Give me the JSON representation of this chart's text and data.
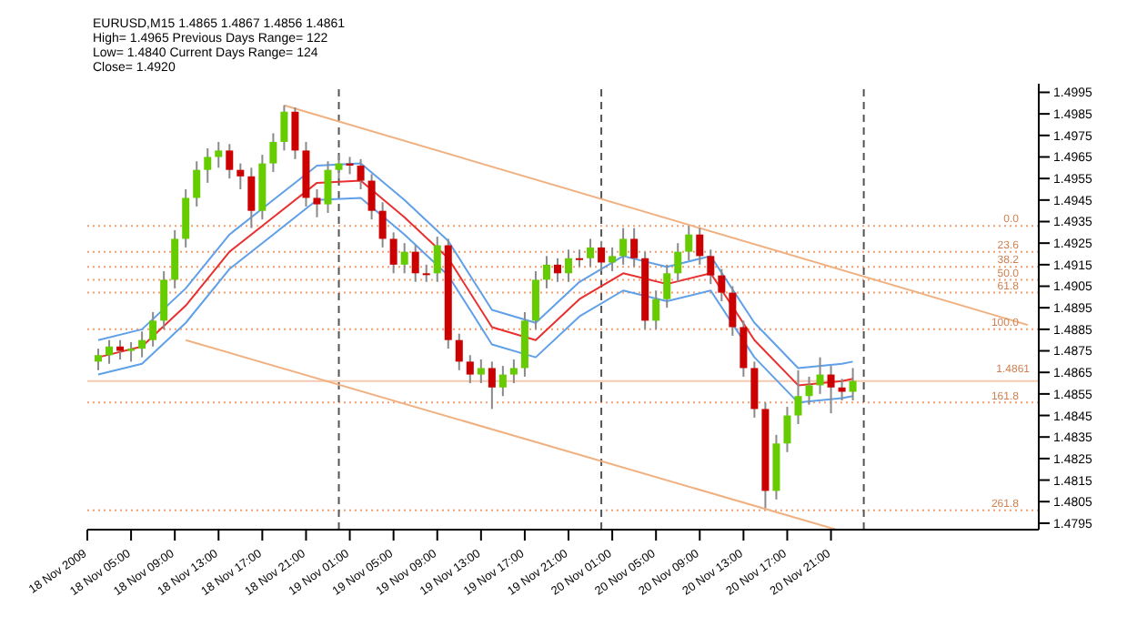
{
  "chart_data": {
    "type": "candlestick",
    "title": "EURUSD,M15 1.4865 1.4867 1.4856 1.4861",
    "annotations": [
      "High= 1.4965  Previous Days Range= 122",
      "Low= 1.4840  Current Days Range= 124",
      "Close= 1.4920",
      {
        "text": "0.0",
        "x": "2009-11-21T15:00",
        "y": 1.4933
      },
      {
        "text": "23.6",
        "x": "2009-11-21T15:00",
        "y": 1.4921
      },
      {
        "text": "38.2",
        "x": "2009-11-21T15:00",
        "y": 1.4914
      },
      {
        "text": "50.0",
        "x": "2009-11-21T15:00",
        "y": 1.4908
      },
      {
        "text": "61.8",
        "x": "2009-11-21T15:00",
        "y": 1.4902
      },
      {
        "text": "100.0",
        "x": "2009-11-21T15:00",
        "y": 1.4885
      },
      {
        "text": "161.8",
        "x": "2009-11-21T15:00",
        "y": 1.4851
      },
      {
        "text": "261.8",
        "x": "2009-11-21T15:00",
        "y": 1.4801
      }
    ],
    "x": [
      "2009-11-18T02:00",
      "2009-11-18T03:00",
      "2009-11-18T04:00",
      "2009-11-18T05:00",
      "2009-11-18T06:00",
      "2009-11-18T07:00",
      "2009-11-18T08:00",
      "2009-11-18T09:00",
      "2009-11-18T10:00",
      "2009-11-18T11:00",
      "2009-11-18T12:00",
      "2009-11-18T13:00",
      "2009-11-18T14:00",
      "2009-11-18T15:00",
      "2009-11-18T16:00",
      "2009-11-18T17:00",
      "2009-11-18T18:00",
      "2009-11-18T19:00",
      "2009-11-18T20:00",
      "2009-11-18T21:00",
      "2009-11-18T22:00",
      "2009-11-18T23:00",
      "2009-11-19T00:00",
      "2009-11-19T01:00",
      "2009-11-19T02:00",
      "2009-11-19T03:00",
      "2009-11-19T04:00",
      "2009-11-19T05:00",
      "2009-11-19T06:00",
      "2009-11-19T07:00",
      "2009-11-19T08:00",
      "2009-11-19T09:00",
      "2009-11-19T10:00",
      "2009-11-19T11:00",
      "2009-11-19T12:00",
      "2009-11-19T13:00",
      "2009-11-19T14:00",
      "2009-11-19T15:00",
      "2009-11-19T16:00",
      "2009-11-19T17:00",
      "2009-11-19T18:00",
      "2009-11-19T19:00",
      "2009-11-19T20:00",
      "2009-11-19T21:00",
      "2009-11-19T22:00",
      "2009-11-19T23:00",
      "2009-11-20T00:00",
      "2009-11-20T01:00",
      "2009-11-20T02:00",
      "2009-11-20T03:00",
      "2009-11-20T04:00",
      "2009-11-20T05:00",
      "2009-11-20T06:00",
      "2009-11-20T07:00",
      "2009-11-20T08:00",
      "2009-11-20T09:00",
      "2009-11-20T10:00",
      "2009-11-20T11:00",
      "2009-11-20T12:00",
      "2009-11-20T13:00",
      "2009-11-20T14:00",
      "2009-11-20T15:00",
      "2009-11-20T16:00",
      "2009-11-20T17:00",
      "2009-11-20T18:00",
      "2009-11-20T19:00",
      "2009-11-20T20:00",
      "2009-11-20T21:00",
      "2009-11-20T22:00",
      "2009-11-20T23:00"
    ],
    "ohlc": [
      [
        1.487,
        1.4876,
        1.4866,
        1.4873
      ],
      [
        1.4873,
        1.488,
        1.4869,
        1.4877
      ],
      [
        1.4877,
        1.488,
        1.4871,
        1.4875
      ],
      [
        1.4875,
        1.4879,
        1.487,
        1.4876
      ],
      [
        1.4876,
        1.4884,
        1.4872,
        1.488
      ],
      [
        1.488,
        1.4893,
        1.4877,
        1.4889
      ],
      [
        1.4889,
        1.4912,
        1.4885,
        1.4908
      ],
      [
        1.4908,
        1.4931,
        1.4904,
        1.4927
      ],
      [
        1.4927,
        1.495,
        1.4923,
        1.4946
      ],
      [
        1.4946,
        1.4963,
        1.4942,
        1.4959
      ],
      [
        1.4959,
        1.4969,
        1.4953,
        1.4965
      ],
      [
        1.4965,
        1.4972,
        1.496,
        1.4968
      ],
      [
        1.4968,
        1.4971,
        1.4955,
        1.4959
      ],
      [
        1.4959,
        1.4962,
        1.495,
        1.4956
      ],
      [
        1.4956,
        1.496,
        1.4932,
        1.494
      ],
      [
        1.494,
        1.4966,
        1.4936,
        1.4962
      ],
      [
        1.4962,
        1.4976,
        1.4958,
        1.4972
      ],
      [
        1.4972,
        1.4989,
        1.4968,
        1.4986
      ],
      [
        1.4986,
        1.4988,
        1.4964,
        1.4968
      ],
      [
        1.4968,
        1.4972,
        1.4942,
        1.4946
      ],
      [
        1.4946,
        1.495,
        1.4937,
        1.4943
      ],
      [
        1.4943,
        1.4963,
        1.4939,
        1.4959
      ],
      [
        1.4959,
        1.4966,
        1.4955,
        1.4962
      ],
      [
        1.4962,
        1.4965,
        1.4957,
        1.4961
      ],
      [
        1.4961,
        1.4964,
        1.495,
        1.4954
      ],
      [
        1.4954,
        1.4957,
        1.4936,
        1.494
      ],
      [
        1.494,
        1.4944,
        1.4923,
        1.4927
      ],
      [
        1.4927,
        1.493,
        1.4911,
        1.4915
      ],
      [
        1.4915,
        1.4925,
        1.4911,
        1.4921
      ],
      [
        1.4921,
        1.4924,
        1.4907,
        1.4911
      ],
      [
        1.4911,
        1.4915,
        1.4907,
        1.4911
      ],
      [
        1.4911,
        1.4928,
        1.4907,
        1.4924
      ],
      [
        1.4924,
        1.4927,
        1.4876,
        1.488
      ],
      [
        1.488,
        1.4883,
        1.4866,
        1.487
      ],
      [
        1.487,
        1.4873,
        1.486,
        1.4864
      ],
      [
        1.4864,
        1.4871,
        1.486,
        1.4867
      ],
      [
        1.4867,
        1.487,
        1.4848,
        1.4858
      ],
      [
        1.4858,
        1.4868,
        1.4854,
        1.4864
      ],
      [
        1.4864,
        1.4871,
        1.486,
        1.4867
      ],
      [
        1.4867,
        1.4893,
        1.4863,
        1.4889
      ],
      [
        1.4889,
        1.4912,
        1.4885,
        1.4908
      ],
      [
        1.4908,
        1.4919,
        1.4904,
        1.4915
      ],
      [
        1.4915,
        1.4918,
        1.4907,
        1.4911
      ],
      [
        1.4911,
        1.4922,
        1.4907,
        1.4918
      ],
      [
        1.4918,
        1.4922,
        1.4914,
        1.4918
      ],
      [
        1.4918,
        1.4927,
        1.4914,
        1.4923
      ],
      [
        1.4923,
        1.4926,
        1.4912,
        1.4916
      ],
      [
        1.4916,
        1.4923,
        1.4912,
        1.4919
      ],
      [
        1.4919,
        1.4932,
        1.4915,
        1.4927
      ],
      [
        1.4927,
        1.4932,
        1.4914,
        1.4918
      ],
      [
        1.4918,
        1.4921,
        1.4885,
        1.4889
      ],
      [
        1.4889,
        1.4903,
        1.4885,
        1.4899
      ],
      [
        1.4899,
        1.4915,
        1.4895,
        1.4911
      ],
      [
        1.4911,
        1.4925,
        1.4907,
        1.4921
      ],
      [
        1.4921,
        1.4933,
        1.4917,
        1.4929
      ],
      [
        1.4929,
        1.4932,
        1.4915,
        1.4919
      ],
      [
        1.4919,
        1.4922,
        1.4906,
        1.491
      ],
      [
        1.491,
        1.4913,
        1.4898,
        1.4902
      ],
      [
        1.4902,
        1.4905,
        1.4882,
        1.4886
      ],
      [
        1.4886,
        1.4889,
        1.4863,
        1.4867
      ],
      [
        1.4867,
        1.487,
        1.4844,
        1.4848
      ],
      [
        1.4848,
        1.4851,
        1.4802,
        1.481
      ],
      [
        1.481,
        1.4836,
        1.4806,
        1.4832
      ],
      [
        1.4832,
        1.4849,
        1.4828,
        1.4845
      ],
      [
        1.4845,
        1.4866,
        1.4841,
        1.4854
      ],
      [
        1.4854,
        1.4863,
        1.485,
        1.4859
      ],
      [
        1.4859,
        1.4872,
        1.4855,
        1.4864
      ],
      [
        1.4864,
        1.4868,
        1.4846,
        1.4858
      ],
      [
        1.4858,
        1.4862,
        1.4852,
        1.4856
      ],
      [
        1.4856,
        1.4867,
        1.4852,
        1.4861
      ]
    ],
    "colors": [
      "#66cc00",
      "#66cc00",
      "#cc0000",
      "#66cc00",
      "#66cc00",
      "#66cc00",
      "#66cc00",
      "#66cc00",
      "#66cc00",
      "#66cc00",
      "#66cc00",
      "#66cc00",
      "#cc0000",
      "#cc0000",
      "#cc0000",
      "#66cc00",
      "#66cc00",
      "#66cc00",
      "#cc0000",
      "#cc0000",
      "#cc0000",
      "#66cc00",
      "#66cc00",
      "#cc0000",
      "#cc0000",
      "#cc0000",
      "#cc0000",
      "#cc0000",
      "#66cc00",
      "#cc0000",
      "#cc0000",
      "#66cc00",
      "#cc0000",
      "#cc0000",
      "#cc0000",
      "#66cc00",
      "#cc0000",
      "#66cc00",
      "#66cc00",
      "#66cc00",
      "#66cc00",
      "#66cc00",
      "#cc0000",
      "#66cc00",
      "#cc0000",
      "#66cc00",
      "#cc0000",
      "#66cc00",
      "#66cc00",
      "#cc0000",
      "#cc0000",
      "#66cc00",
      "#66cc00",
      "#66cc00",
      "#66cc00",
      "#cc0000",
      "#cc0000",
      "#cc0000",
      "#cc0000",
      "#cc0000",
      "#cc0000",
      "#cc0000",
      "#66cc00",
      "#66cc00",
      "#66cc00",
      "#66cc00",
      "#66cc00",
      "#cc0000",
      "#cc0000",
      "#66cc00"
    ],
    "series": [
      {
        "type": "line",
        "color": "#e83030",
        "x": [
          "2009-11-18T02:00",
          "2009-11-18T06:00",
          "2009-11-18T10:00",
          "2009-11-18T14:00",
          "2009-11-18T18:00",
          "2009-11-18T22:00",
          "2009-11-19T02:00",
          "2009-11-19T06:00",
          "2009-11-19T10:00",
          "2009-11-19T14:00",
          "2009-11-19T18:00",
          "2009-11-19T22:00",
          "2009-11-20T02:00",
          "2009-11-20T06:00",
          "2009-11-20T10:00",
          "2009-11-20T14:00",
          "2009-11-20T18:00",
          "2009-11-20T22:00",
          "2009-11-20T23:00"
        ],
        "values": [
          1.4872,
          1.4877,
          1.4896,
          1.4921,
          1.4937,
          1.4953,
          1.4954,
          1.4937,
          1.4918,
          1.4886,
          1.488,
          1.4899,
          1.4911,
          1.4906,
          1.4911,
          1.488,
          1.4859,
          1.4861,
          1.4862
        ]
      },
      {
        "type": "line",
        "color": "#5fa0e8",
        "x": [
          "2009-11-18T02:00",
          "2009-11-18T06:00",
          "2009-11-18T10:00",
          "2009-11-18T14:00",
          "2009-11-18T18:00",
          "2009-11-18T22:00",
          "2009-11-19T02:00",
          "2009-11-19T06:00",
          "2009-11-19T10:00",
          "2009-11-19T14:00",
          "2009-11-19T18:00",
          "2009-11-19T22:00",
          "2009-11-20T02:00",
          "2009-11-20T06:00",
          "2009-11-20T10:00",
          "2009-11-20T14:00",
          "2009-11-20T18:00",
          "2009-11-20T22:00",
          "2009-11-20T23:00"
        ],
        "values": [
          1.488,
          1.4885,
          1.4904,
          1.4929,
          1.4945,
          1.4961,
          1.4962,
          1.4945,
          1.4926,
          1.4894,
          1.4888,
          1.4907,
          1.4919,
          1.4914,
          1.4919,
          1.4888,
          1.4867,
          1.4869,
          1.487
        ]
      },
      {
        "type": "line",
        "color": "#5fa0e8",
        "x": [
          "2009-11-18T02:00",
          "2009-11-18T06:00",
          "2009-11-18T10:00",
          "2009-11-18T14:00",
          "2009-11-18T18:00",
          "2009-11-18T22:00",
          "2009-11-19T02:00",
          "2009-11-19T06:00",
          "2009-11-19T10:00",
          "2009-11-19T14:00",
          "2009-11-19T18:00",
          "2009-11-19T22:00",
          "2009-11-20T02:00",
          "2009-11-20T06:00",
          "2009-11-20T10:00",
          "2009-11-20T14:00",
          "2009-11-20T18:00",
          "2009-11-20T22:00",
          "2009-11-20T23:00"
        ],
        "values": [
          1.4864,
          1.4869,
          1.4888,
          1.4913,
          1.4929,
          1.4945,
          1.4946,
          1.4929,
          1.491,
          1.4878,
          1.4872,
          1.4891,
          1.4903,
          1.4898,
          1.4903,
          1.4872,
          1.4851,
          1.4853,
          1.4854
        ]
      },
      {
        "type": "line",
        "color": "#f0b080",
        "x": [
          "2009-11-18T19:00",
          "2009-11-21T15:00"
        ],
        "values": [
          1.4989,
          1.4887
        ]
      },
      {
        "type": "line",
        "color": "#f0b080",
        "x": [
          "2009-11-18T10:00",
          "2009-11-20T21:30"
        ],
        "values": [
          1.488,
          1.4792
        ]
      }
    ],
    "xlim": [
      "2009-11-18T01:00",
      "2009-11-21T16:00"
    ],
    "xticks": [
      {
        "value": "2009-11-18T01:00",
        "label": "18 Nov 2009"
      },
      {
        "value": "2009-11-18T05:00",
        "label": "18 Nov 05:00"
      },
      {
        "value": "2009-11-18T09:00",
        "label": "18 Nov 09:00"
      },
      {
        "value": "2009-11-18T13:00",
        "label": "18 Nov 13:00"
      },
      {
        "value": "2009-11-18T17:00",
        "label": "18 Nov 17:00"
      },
      {
        "value": "2009-11-18T21:00",
        "label": "18 Nov 21:00"
      },
      {
        "value": "2009-11-19T01:00",
        "label": "19 Nov 01:00"
      },
      {
        "value": "2009-11-19T05:00",
        "label": "19 Nov 05:00"
      },
      {
        "value": "2009-11-19T09:00",
        "label": "19 Nov 09:00"
      },
      {
        "value": "2009-11-19T13:00",
        "label": "19 Nov 13:00"
      },
      {
        "value": "2009-11-19T17:00",
        "label": "19 Nov 17:00"
      },
      {
        "value": "2009-11-19T21:00",
        "label": "19 Nov 21:00"
      },
      {
        "value": "2009-11-20T01:00",
        "label": "20 Nov 01:00"
      },
      {
        "value": "2009-11-20T05:00",
        "label": "20 Nov 05:00"
      },
      {
        "value": "2009-11-20T09:00",
        "label": "20 Nov 09:00"
      },
      {
        "value": "2009-11-20T13:00",
        "label": "20 Nov 13:00"
      },
      {
        "value": "2009-11-20T17:00",
        "label": "20 Nov 17:00"
      },
      {
        "value": "2009-11-20T21:00",
        "label": "20 Nov 21:00"
      }
    ],
    "ylim": [
      1.4792,
      1.4999
    ],
    "yticks": [
      1.4795,
      1.4805,
      1.4815,
      1.4825,
      1.4835,
      1.4845,
      1.4855,
      1.4865,
      1.4875,
      1.4885,
      1.4895,
      1.4905,
      1.4915,
      1.4925,
      1.4935,
      1.4945,
      1.4955,
      1.4965,
      1.4975,
      1.4985,
      1.4995
    ],
    "ref_lines": [
      {
        "axis": "y",
        "value": 1.4933,
        "color": "#f0a070",
        "line_style": "dotted"
      },
      {
        "axis": "y",
        "value": 1.4921,
        "color": "#f0a070",
        "line_style": "dotted"
      },
      {
        "axis": "y",
        "value": 1.4914,
        "color": "#f0a070",
        "line_style": "dotted"
      },
      {
        "axis": "y",
        "value": 1.4908,
        "color": "#f0a070",
        "line_style": "dotted"
      },
      {
        "axis": "y",
        "value": 1.4902,
        "color": "#f0a070",
        "line_style": "dotted"
      },
      {
        "axis": "y",
        "value": 1.4885,
        "color": "#f0a070",
        "line_style": "dotted"
      },
      {
        "axis": "y",
        "value": 1.4851,
        "color": "#f0a070",
        "line_style": "dotted"
      },
      {
        "axis": "y",
        "value": 1.4801,
        "color": "#f0a070",
        "line_style": "dotted"
      },
      {
        "axis": "y",
        "value": 1.4861,
        "label": "1.4861",
        "color": "#f5c8b0",
        "line_style": "solid"
      },
      {
        "axis": "x",
        "value": "2009-11-19T00:00",
        "color": "#555555",
        "line_style": "dashed"
      },
      {
        "axis": "x",
        "value": "2009-11-20T00:00",
        "color": "#555555",
        "line_style": "dashed"
      },
      {
        "axis": "x",
        "value": "2009-11-21T00:00",
        "color": "#555555",
        "line_style": "dashed"
      }
    ]
  }
}
